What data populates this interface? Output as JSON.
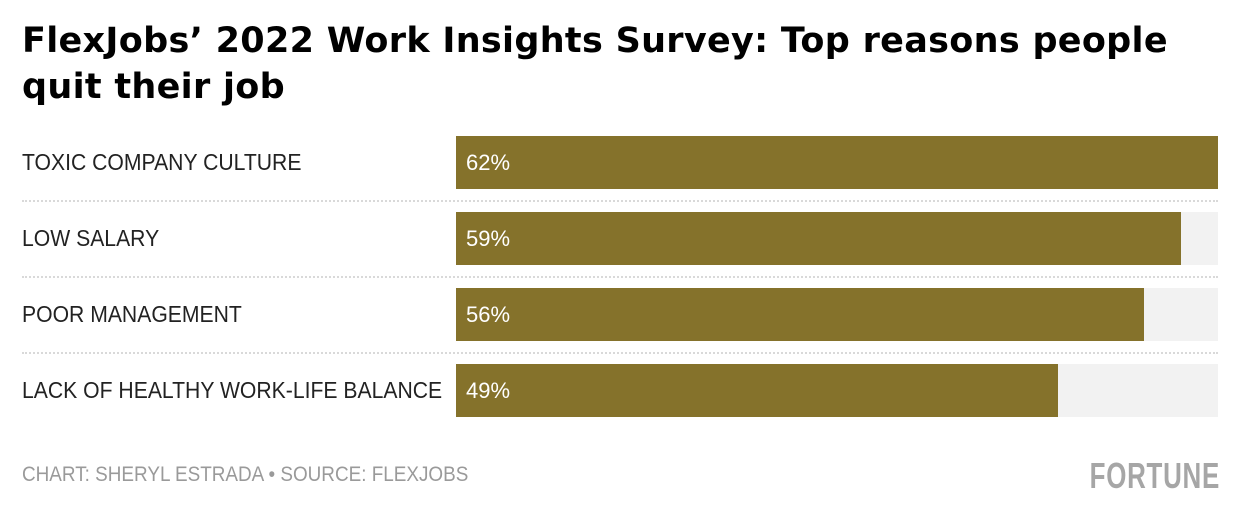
{
  "chart_data": {
    "type": "bar",
    "orientation": "horizontal",
    "title": "FlexJobs’ 2022 Work Insights Survey: Top reasons people quit their job",
    "categories": [
      "TOXIC COMPANY CULTURE",
      "LOW SALARY",
      "POOR MANAGEMENT",
      "LACK OF HEALTHY WORK-LIFE BALANCE"
    ],
    "values": [
      62,
      59,
      56,
      49
    ],
    "value_labels": [
      "62%",
      "59%",
      "56%",
      "49%"
    ],
    "unit": "%",
    "xlim": [
      0,
      62
    ],
    "xlabel": "",
    "ylabel": "",
    "grid": false,
    "colors": {
      "bar": "#85722b",
      "track": "#f2f2f2",
      "value_text": "#ffffff"
    }
  },
  "footer": {
    "credit": "CHART: SHERYL ESTRADA • SOURCE: FLEXJOBS",
    "logo": "FORTUNE"
  }
}
